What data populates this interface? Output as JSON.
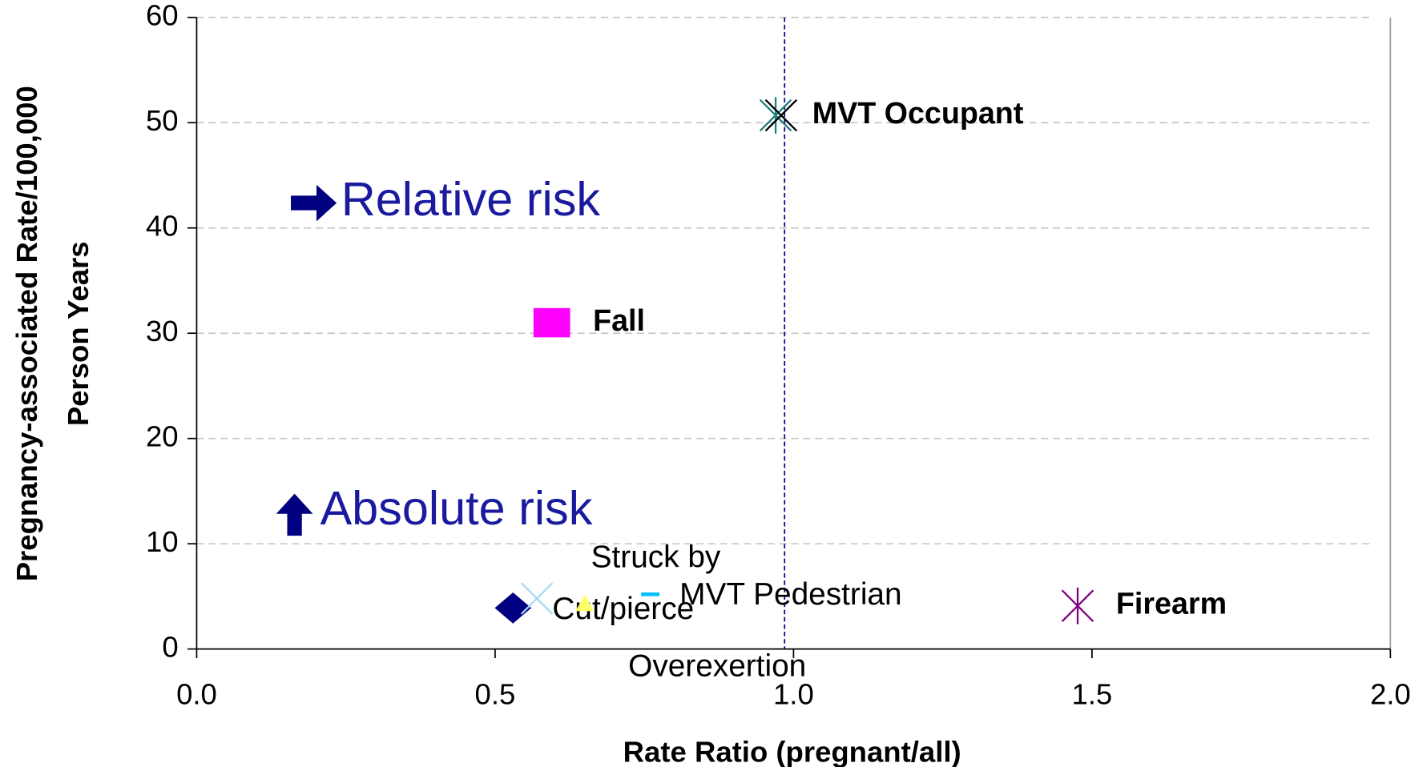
{
  "chart_data": {
    "type": "scatter",
    "x_label": "Rate Ratio (pregnant/all)",
    "y_label": [
      "Pregnancy-associated Rate/100,000",
      "Person Years"
    ],
    "annotations": [
      "Relative risk",
      "Absolute risk"
    ],
    "xlim": [
      0,
      2
    ],
    "xticks": [
      {
        "value": 0,
        "label": "0.0"
      },
      0.5,
      {
        "value": 1,
        "label": "1.0"
      },
      1.5,
      {
        "value": 2,
        "label": "2.0"
      }
    ],
    "ylim": [
      0,
      60
    ],
    "yticks": [
      0,
      10,
      20,
      30,
      40,
      50,
      60
    ],
    "grid": true,
    "vline_x": 0.985,
    "series": [
      {
        "name": "MVT Occupant",
        "color": "#1f7f7f",
        "marker": "asterisk",
        "x": [
          0.97
        ],
        "values": [
          50.7
        ]
      },
      {
        "name": "Fall",
        "color": "#ff00ff",
        "marker": "square",
        "x": [
          0.595
        ],
        "values": [
          31
        ]
      },
      {
        "name": "Firearm",
        "color": "#800080",
        "marker": "asterisk",
        "x": [
          1.476
        ],
        "values": [
          4.1
        ]
      },
      {
        "name": "Cut/pierce",
        "color": "#000080",
        "marker": "diamond",
        "x": [
          0.53
        ],
        "values": [
          3.9
        ]
      },
      {
        "name": "Struck by",
        "color": "#a6d8f5",
        "marker": "x",
        "x": [
          0.57
        ],
        "values": [
          4.8
        ]
      },
      {
        "name": "Overexertion",
        "color": "#ffff66",
        "marker": "triangle",
        "x": [
          0.65
        ],
        "values": [
          4.3
        ]
      },
      {
        "name": "MVT Pedestrian",
        "color": "#00bfff",
        "marker": "dash",
        "x": [
          0.76
        ],
        "values": [
          5.2
        ]
      }
    ]
  }
}
